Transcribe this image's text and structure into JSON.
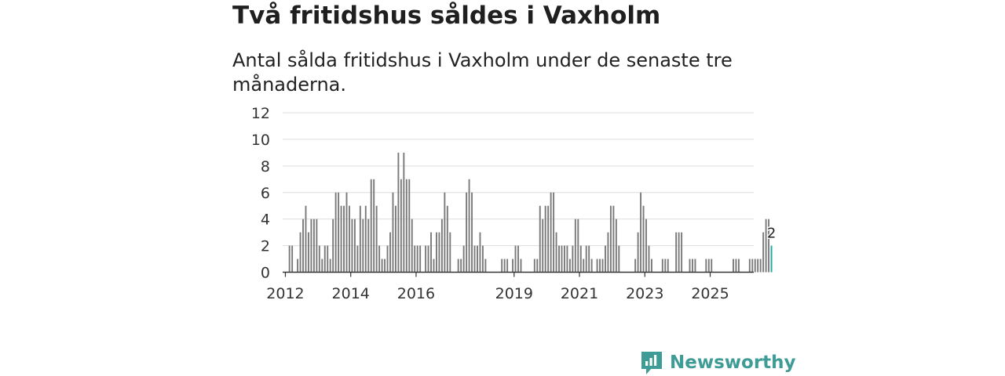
{
  "header": {
    "title": "Två fritidshus såldes i Vaxholm",
    "subtitle": "Antal sålda fritidshus i Vaxholm under de senaste tre månaderna."
  },
  "brand": {
    "name": "Newsworthy",
    "color": "#3f9b95"
  },
  "colors": {
    "bar": "#7a7a7a",
    "highlight": "#1fa9a5",
    "grid": "#dddddd",
    "axis": "#333333"
  },
  "chart_data": {
    "type": "bar",
    "title": "Två fritidshus såldes i Vaxholm",
    "subtitle": "Antal sålda fritidshus i Vaxholm under de senaste tre månaderna.",
    "xlabel": "",
    "ylabel": "",
    "ylim": [
      0,
      12
    ],
    "yticks": [
      0,
      2,
      4,
      6,
      8,
      10,
      12
    ],
    "xticks": [
      "2012",
      "2014",
      "2016",
      "2019",
      "2021",
      "2023",
      "2025"
    ],
    "grid": true,
    "x_start": "2011-12",
    "x_end": "2026-04",
    "highlight_label": "2",
    "values": [
      0,
      0,
      2,
      2,
      0,
      1,
      3,
      4,
      5,
      3,
      4,
      4,
      4,
      2,
      1,
      2,
      2,
      1,
      4,
      6,
      6,
      5,
      5,
      6,
      5,
      4,
      4,
      2,
      5,
      4,
      5,
      4,
      7,
      7,
      5,
      2,
      1,
      1,
      2,
      3,
      6,
      5,
      9,
      7,
      9,
      7,
      7,
      4,
      2,
      2,
      2,
      0,
      2,
      2,
      3,
      1,
      3,
      3,
      4,
      6,
      5,
      3,
      0,
      0,
      1,
      1,
      2,
      6,
      7,
      6,
      2,
      2,
      3,
      2,
      1,
      0,
      0,
      0,
      0,
      0,
      1,
      1,
      1,
      0,
      1,
      2,
      2,
      1,
      0,
      0,
      0,
      0,
      1,
      1,
      5,
      4,
      5,
      5,
      6,
      6,
      3,
      2,
      2,
      2,
      2,
      1,
      2,
      4,
      4,
      2,
      1,
      2,
      2,
      1,
      0,
      1,
      1,
      1,
      2,
      3,
      5,
      5,
      4,
      2,
      0,
      0,
      0,
      0,
      0,
      1,
      3,
      6,
      5,
      4,
      2,
      1,
      0,
      0,
      0,
      1,
      1,
      1,
      0,
      0,
      3,
      3,
      3,
      0,
      0,
      1,
      1,
      1,
      0,
      0,
      0,
      1,
      1,
      1,
      0,
      0,
      0,
      0,
      0,
      0,
      0,
      1,
      1,
      1,
      0,
      0,
      0,
      1,
      1,
      1,
      1,
      1,
      3,
      4,
      4,
      2
    ]
  }
}
